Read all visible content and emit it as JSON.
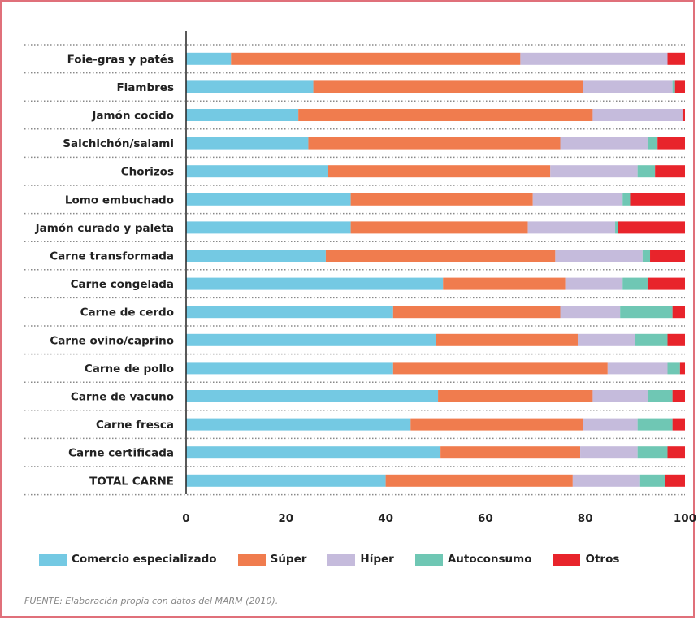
{
  "chart_data": {
    "type": "bar",
    "orientation": "horizontal",
    "stacked": true,
    "categories": [
      "Foie-gras y patés",
      "Fiambres",
      "Jamón cocido",
      "Salchichón/salami",
      "Chorizos",
      "Lomo embuchado",
      "Jamón curado y paleta",
      "Carne transformada",
      "Carne congelada",
      "Carne de cerdo",
      "Carne ovino/caprino",
      "Carne de pollo",
      "Carne de vacuno",
      "Carne fresca",
      "Carne certificada",
      "TOTAL CARNE"
    ],
    "series": [
      {
        "name": "Comercio especializado",
        "color": "#74c9e3",
        "values": [
          9,
          25.5,
          22.5,
          24.5,
          28.5,
          33,
          33,
          28,
          51.5,
          41.5,
          50,
          41.5,
          50.5,
          45,
          51,
          40
        ]
      },
      {
        "name": "Súper",
        "color": "#f07c4e",
        "values": [
          58,
          54,
          59,
          50.5,
          44.5,
          36.5,
          35.5,
          46,
          24.5,
          33.5,
          28.5,
          43,
          31,
          34.5,
          28,
          37.5
        ]
      },
      {
        "name": "Híper",
        "color": "#c5bbdc",
        "values": [
          29.5,
          18,
          18,
          17.5,
          17.5,
          18,
          17.5,
          17.5,
          11.5,
          12,
          11.5,
          12,
          11,
          11,
          11.5,
          13.5
        ]
      },
      {
        "name": "Autoconsumo",
        "color": "#6fc7b4",
        "values": [
          0,
          0.5,
          0,
          2,
          3.5,
          1.5,
          0.5,
          1.5,
          5,
          10.5,
          6.5,
          2.5,
          5,
          7,
          6,
          5
        ]
      },
      {
        "name": "Otros",
        "color": "#e8242b",
        "values": [
          3.5,
          2,
          0.5,
          5.5,
          6,
          11,
          13.5,
          7,
          7.5,
          2.5,
          3.5,
          1,
          2.5,
          2.5,
          3.5,
          4
        ]
      }
    ],
    "xlim": [
      0,
      100
    ],
    "x_ticks": [
      "0",
      "20",
      "40",
      "60",
      "80",
      "100"
    ],
    "title": "",
    "xlabel": "",
    "ylabel": "",
    "legend_position": "bottom",
    "grid": "dotted separators between rows"
  },
  "source_note": "FUENTE: Elaboración propia con datos del MARM (2010).",
  "colors": {
    "frame": "#e0707a",
    "separator": "#888888",
    "axis": "#222222"
  }
}
